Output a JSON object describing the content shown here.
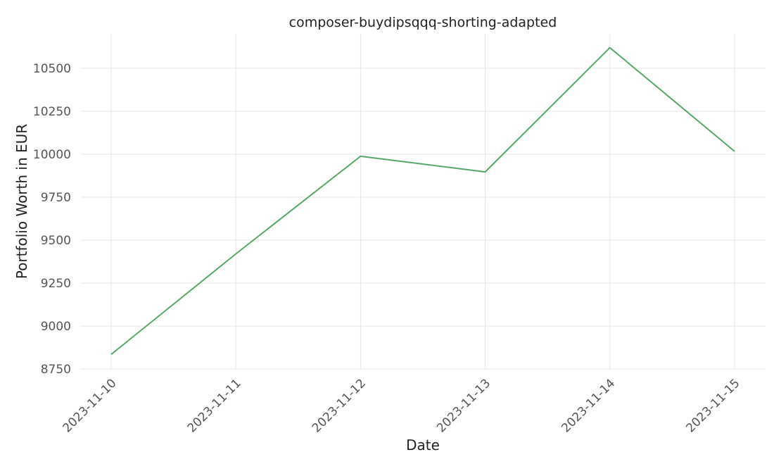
{
  "chart_data": {
    "type": "line",
    "title": "composer-buydipsqqq-shorting-adapted",
    "xlabel": "Date",
    "ylabel": "Portfolio Worth in EUR",
    "x": [
      "2023-11-10",
      "2023-11-11",
      "2023-11-12",
      "2023-11-13",
      "2023-11-14",
      "2023-11-15"
    ],
    "series": [
      {
        "values": [
          8835,
          9420,
          9988,
          9897,
          10620,
          10017
        ],
        "color": "#55a868"
      }
    ],
    "ylim": [
      8750,
      10700
    ],
    "yticks": [
      8750,
      9000,
      9250,
      9500,
      9750,
      10000,
      10250,
      10500
    ],
    "grid": true,
    "legend": "none"
  }
}
